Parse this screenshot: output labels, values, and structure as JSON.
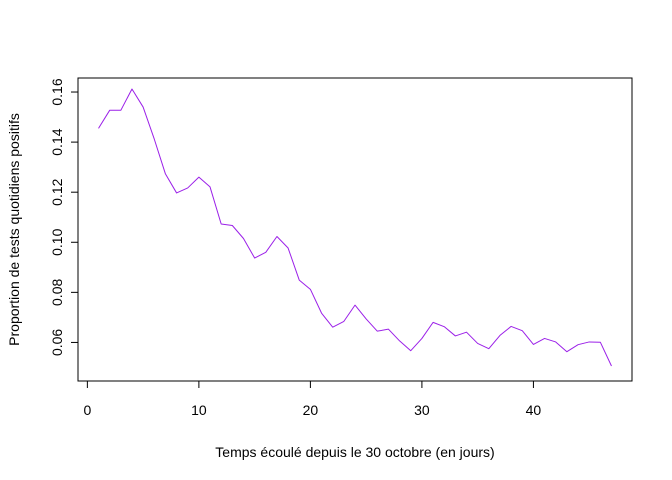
{
  "chart_data": {
    "type": "line",
    "title": "",
    "xlabel": "Temps écoulé depuis le 30 octobre (en jours)",
    "ylabel": "Proportion de tests quotidiens positifs",
    "xlim": [
      -0.84,
      48.84
    ],
    "ylim": [
      0.0446,
      0.1656
    ],
    "x_ticks": [
      0,
      10,
      20,
      30,
      40
    ],
    "y_ticks": [
      0.06,
      0.08,
      0.1,
      0.12,
      0.14,
      0.16
    ],
    "x_tick_labels": [
      "0",
      "10",
      "20",
      "30",
      "40"
    ],
    "y_tick_labels": [
      "0.06",
      "0.08",
      "0.10",
      "0.12",
      "0.14",
      "0.16"
    ],
    "grid": false,
    "legend": "none",
    "series": [
      {
        "color": "#9b20e8",
        "x": [
          1,
          2,
          3,
          4,
          5,
          6,
          7,
          8,
          9,
          10,
          11,
          12,
          13,
          14,
          15,
          16,
          17,
          18,
          19,
          20,
          21,
          22,
          23,
          24,
          25,
          26,
          27,
          28,
          29,
          30,
          31,
          32,
          33,
          34,
          35,
          36,
          37,
          38,
          39,
          40,
          41,
          42,
          43,
          44,
          45,
          46,
          47
        ],
        "y": [
          0.1455,
          0.1527,
          0.1527,
          0.1612,
          0.154,
          0.1412,
          0.1273,
          0.1197,
          0.1217,
          0.126,
          0.1221,
          0.1073,
          0.1067,
          0.1015,
          0.0937,
          0.096,
          0.1023,
          0.0977,
          0.0849,
          0.0812,
          0.0717,
          0.0661,
          0.0684,
          0.0749,
          0.0694,
          0.0645,
          0.0653,
          0.0606,
          0.0567,
          0.0616,
          0.068,
          0.0663,
          0.0626,
          0.0641,
          0.0596,
          0.0575,
          0.0628,
          0.0664,
          0.0647,
          0.0592,
          0.0616,
          0.0602,
          0.0563,
          0.0591,
          0.0602,
          0.0601,
          0.0506
        ]
      }
    ]
  }
}
